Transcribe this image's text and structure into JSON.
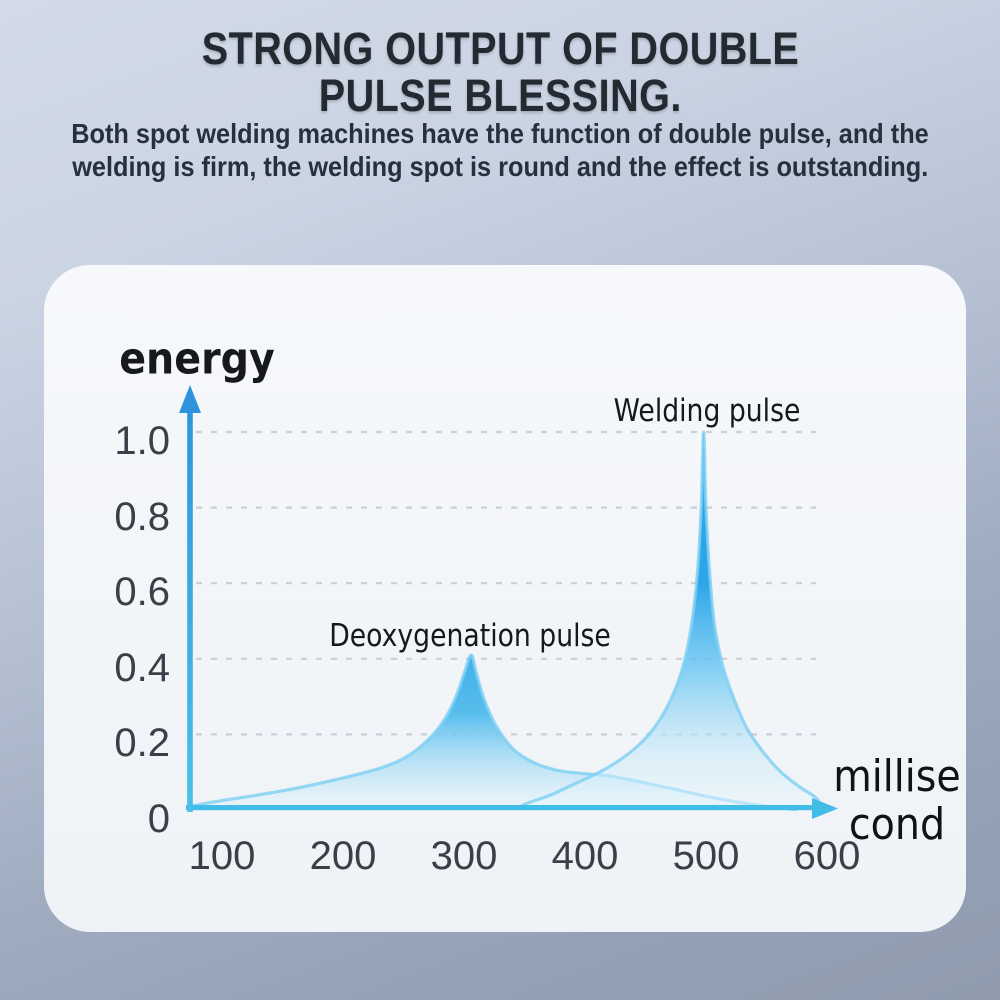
{
  "header": {
    "title_line1": "STRONG OUTPUT OF DOUBLE",
    "title_line2": "PULSE BLESSING.",
    "subtitle_line1": "Both spot welding machines have the function of double pulse, and the",
    "subtitle_line2": "welding is firm, the welding spot is round and the effect is outstanding."
  },
  "chart_data": {
    "type": "area",
    "title": "",
    "ylabel": "energy",
    "xlabel": "millisecond",
    "xlabel_lines": [
      "millise",
      "cond"
    ],
    "x_ticks": [
      100,
      200,
      300,
      400,
      500,
      600
    ],
    "y_ticks": [
      1.0,
      0.8,
      0.6,
      0.4,
      0.2,
      0
    ],
    "y_tick_labels": [
      "1.0",
      "0.8",
      "0.6",
      "0.4",
      "0.2",
      "0"
    ],
    "xlim": [
      60,
      640
    ],
    "ylim": [
      0,
      1.1
    ],
    "grid": {
      "axis": "y",
      "style": "dashed",
      "color": "#c6cad1"
    },
    "legend": "none",
    "annotations": [
      {
        "text": "Deoxygenation pulse",
        "x": 305,
        "y": 0.47
      },
      {
        "text": "Welding pulse",
        "x": 500,
        "y": 1.06
      }
    ],
    "series": [
      {
        "name": "Deoxygenation pulse",
        "peak": {
          "x": 306,
          "energy": 0.41
        },
        "points": [
          [
            74,
            0.01
          ],
          [
            100,
            0.025
          ],
          [
            130,
            0.04
          ],
          [
            165,
            0.06
          ],
          [
            200,
            0.085
          ],
          [
            230,
            0.11
          ],
          [
            252,
            0.14
          ],
          [
            270,
            0.185
          ],
          [
            284,
            0.24
          ],
          [
            294,
            0.305
          ],
          [
            301,
            0.37
          ],
          [
            306,
            0.41
          ],
          [
            310,
            0.365
          ],
          [
            317,
            0.29
          ],
          [
            327,
            0.22
          ],
          [
            341,
            0.16
          ],
          [
            358,
            0.125
          ],
          [
            377,
            0.105
          ],
          [
            397,
            0.097
          ],
          [
            420,
            0.09
          ],
          [
            445,
            0.075
          ],
          [
            470,
            0.058
          ],
          [
            495,
            0.04
          ],
          [
            520,
            0.024
          ],
          [
            545,
            0.012
          ],
          [
            566,
            0.004
          ],
          [
            575,
            0.001
          ]
        ]
      },
      {
        "name": "Welding pulse",
        "peak": {
          "x": 498,
          "energy": 1.0
        },
        "points": [
          [
            345,
            0.002
          ],
          [
            350,
            0.015
          ],
          [
            372,
            0.04
          ],
          [
            392,
            0.07
          ],
          [
            412,
            0.1
          ],
          [
            430,
            0.135
          ],
          [
            447,
            0.18
          ],
          [
            461,
            0.235
          ],
          [
            472,
            0.3
          ],
          [
            481,
            0.38
          ],
          [
            488,
            0.49
          ],
          [
            493,
            0.63
          ],
          [
            496,
            0.8
          ],
          [
            498,
            1.0
          ],
          [
            500,
            0.8
          ],
          [
            503,
            0.63
          ],
          [
            507,
            0.49
          ],
          [
            514,
            0.38
          ],
          [
            523,
            0.295
          ],
          [
            534,
            0.215
          ],
          [
            548,
            0.15
          ],
          [
            562,
            0.1
          ],
          [
            577,
            0.062
          ],
          [
            590,
            0.035
          ],
          [
            595,
            0.015
          ],
          [
            600,
            0.006
          ],
          [
            603,
            0.001
          ]
        ]
      }
    ],
    "colors": {
      "background_top": "#d2dae7",
      "background_bottom": "#909cae",
      "card": "#f4f6f9",
      "title_text": "#242a31",
      "subtitle_text": "#27313c",
      "axis_label_text": "#15181c",
      "tick_text": "#394049",
      "grid": "#c6cad1",
      "pulse_gradient_left": [
        "rgba(62,176,233,1)",
        "rgba(80,186,236,0.95)",
        "rgba(150,214,245,0.7)",
        "rgba(233,246,253,0.45)"
      ],
      "pulse_gradient_left_offsets": [
        0,
        0.38,
        0.66,
        1
      ],
      "pulse_gradient_right": [
        "rgba(40,162,230,1)",
        "rgba(45,166,232,1)",
        "rgba(100,196,242,0.8)",
        "rgba(198,232,249,0.55)",
        "rgba(237,248,253,0.45)"
      ],
      "pulse_gradient_right_offsets": [
        0,
        0.4,
        0.62,
        0.85,
        1
      ],
      "pulse_outline": "rgba(125,207,242,0.8)",
      "y_axis_top": "#2d93dc",
      "y_axis_bottom": "#49c1e9",
      "x_axis": "#41bde7"
    }
  }
}
